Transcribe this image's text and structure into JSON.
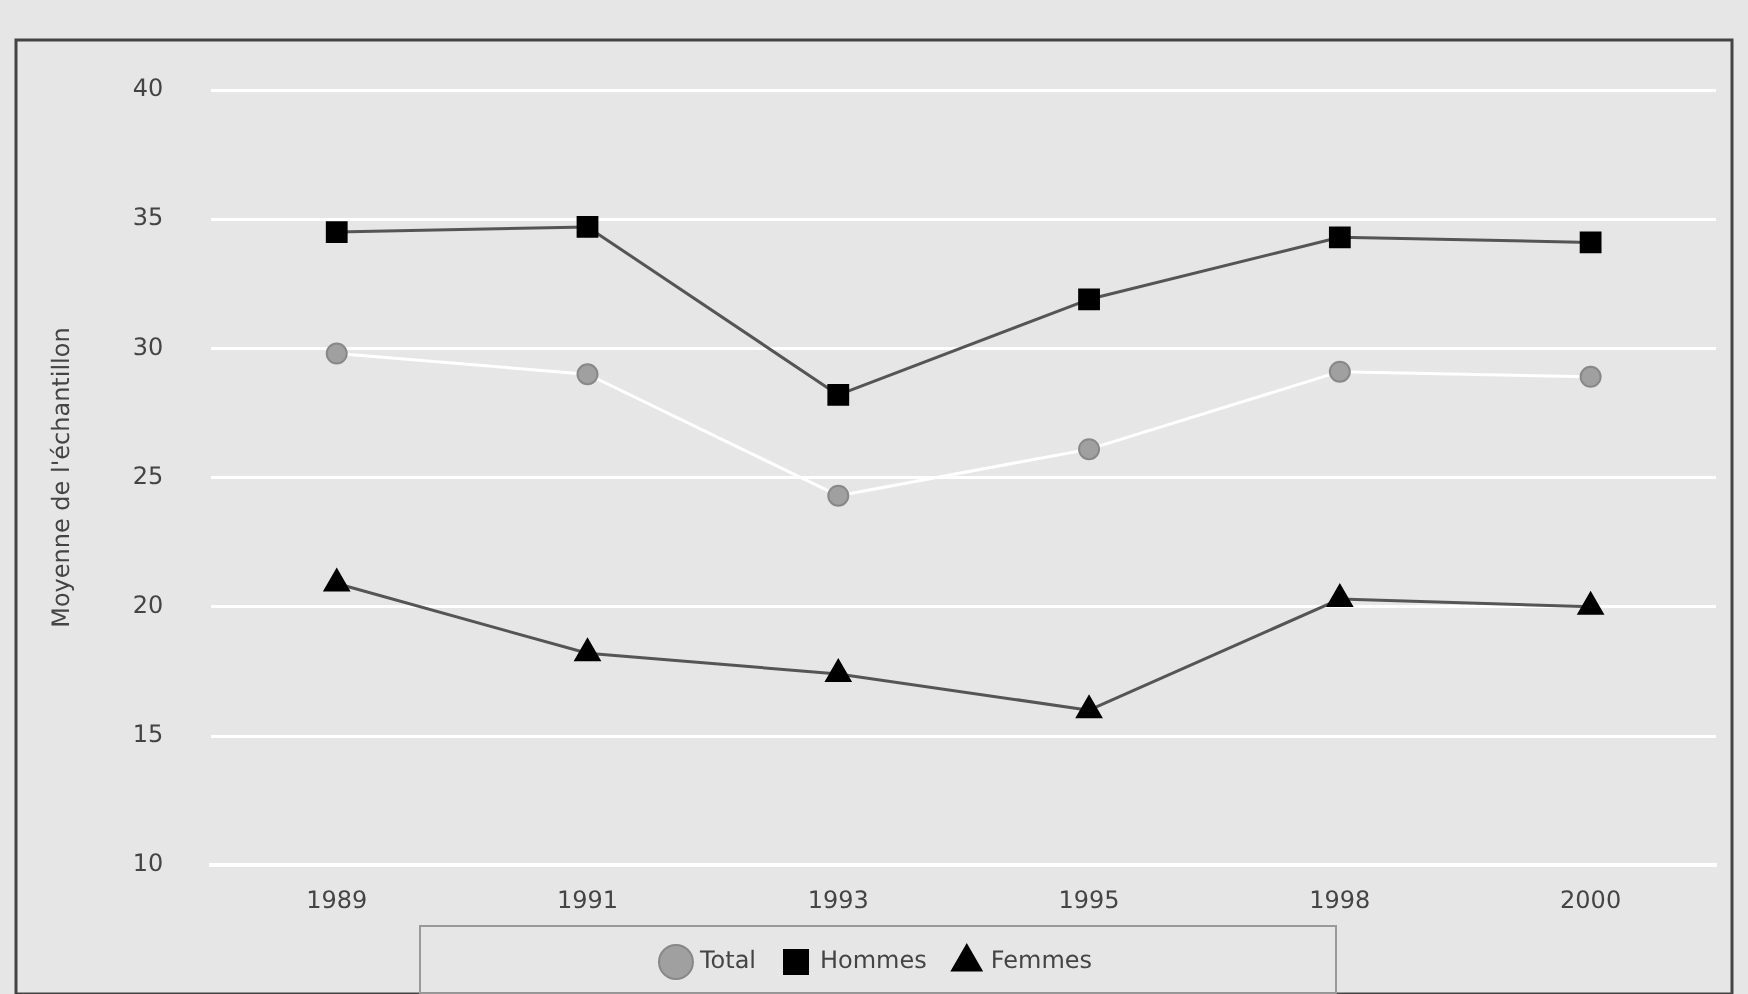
{
  "chart_data": {
    "type": "line",
    "ylabel": "Moyenne de l'échantillon",
    "categories": [
      "1989",
      "1991",
      "1993",
      "1995",
      "1998",
      "2000"
    ],
    "series": [
      {
        "name": "Total",
        "color": "#ffffff",
        "marker": "circle",
        "values": [
          29.8,
          29.0,
          24.3,
          26.1,
          29.1,
          28.9
        ]
      },
      {
        "name": "Hommes",
        "color": "#555555",
        "marker": "square",
        "values": [
          34.5,
          34.7,
          28.2,
          31.9,
          34.3,
          34.1
        ]
      },
      {
        "name": "Femmes",
        "color": "#555555",
        "marker": "triangle",
        "values": [
          20.9,
          18.2,
          17.4,
          16.0,
          20.3,
          20.0
        ]
      }
    ],
    "ylim": [
      10,
      40
    ],
    "yticks": [
      10,
      15,
      20,
      25,
      30,
      35,
      40
    ],
    "grid": "y",
    "legend": "bottom"
  }
}
